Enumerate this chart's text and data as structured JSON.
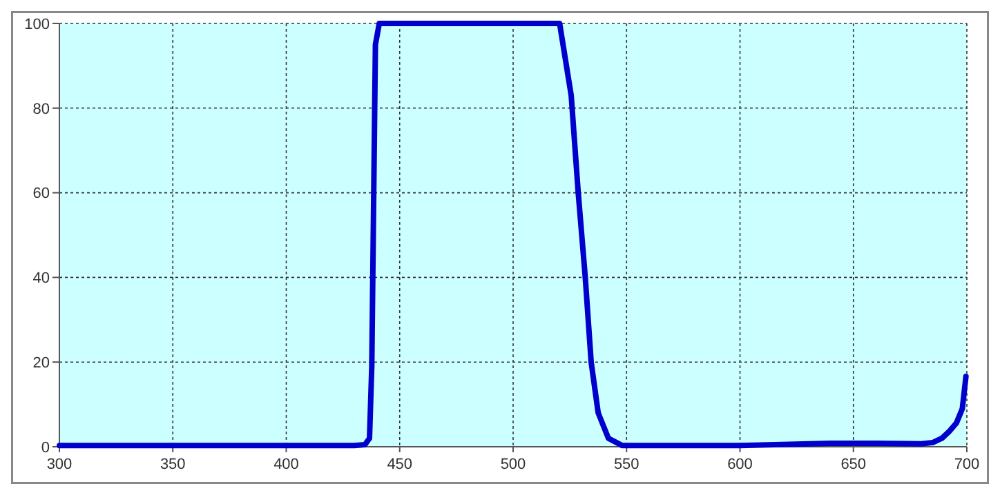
{
  "chart_data": {
    "type": "line",
    "xlim": [
      300,
      700
    ],
    "ylim": [
      0,
      100
    ],
    "xticks": [
      300,
      350,
      400,
      450,
      500,
      550,
      600,
      650,
      700
    ],
    "yticks": [
      0,
      20,
      40,
      60,
      80,
      100
    ],
    "grid": true,
    "marker": "none",
    "line_style": "solid",
    "series": [
      {
        "color": "#0000cc",
        "x": [
          300,
          350,
          400,
          430,
          434.7,
          436.7,
          437.7,
          439.3,
          441,
          480,
          520.5,
          525.6,
          528.7,
          531.8,
          534.4,
          537.5,
          542,
          548,
          560,
          600,
          640,
          660,
          680,
          685,
          689,
          692,
          695.4,
          698,
          699.6
        ],
        "values": [
          0.3,
          0.3,
          0.3,
          0.3,
          0.5,
          2,
          19,
          95,
          100,
          100,
          100,
          83,
          60,
          40,
          20,
          8,
          2,
          0.3,
          0.3,
          0.3,
          0.8,
          0.8,
          0.7,
          1,
          2,
          3.5,
          5.6,
          9,
          16.6
        ]
      }
    ]
  }
}
